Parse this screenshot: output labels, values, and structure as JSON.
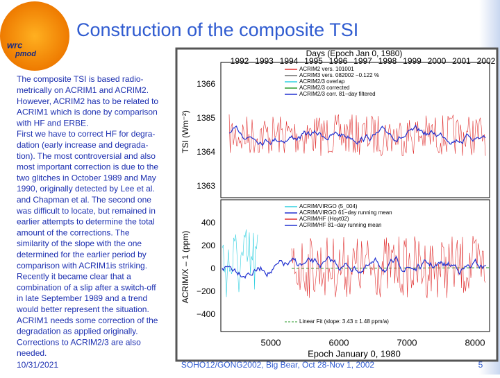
{
  "header": {
    "title": "Construction of the composite TSI",
    "logo": [
      "wrc",
      "pmod"
    ]
  },
  "body": {
    "lines": [
      "The composite TSI is based radio-",
      "metrically on ACRIM1 and ACRIM2.",
      "However, ACRIM2 has to be related to",
      "ACRIM1 which is done by comparison",
      "with HF and ERBE.",
      "First we have to correct HF for degra-",
      "dation (early increase and degrada-",
      "tion). The most controversial and also",
      "most important correction is due to the",
      "two glitches in October 1989 and May",
      "1990, originally detected by Lee et al.",
      "and  Chapman et al. The second one",
      "was difficult to locate, but remained in",
      "earlier attempts to determine the total",
      "amount of the corrections. The",
      "similarity of the slope with the one",
      "determined for the earlier period by",
      "comparison with ACRIM1is striking.",
      "Recently it became clear that a",
      "combination of a slip after a switch-off",
      "in late September 1989 and a trend",
      "would better represent the situation.",
      "ACRIM1 needs some correction of the",
      "degradation as applied originally.",
      "Corrections to ACRIM2/3 are also",
      "needed."
    ]
  },
  "figure": {
    "top_axis_title": "Days (Epoch Jan 0, 1980)",
    "top_ticks": [
      "1992",
      "1993",
      "1994",
      "1995",
      "1996",
      "1997",
      "1998",
      "1999",
      "2000",
      "2001",
      "2002"
    ],
    "bottom_axis_title": "Epoch January 0, 1980",
    "bottom_ticks": [
      "5000",
      "6000",
      "7000",
      "8000"
    ],
    "upper_ylabel": "TSI (Wm⁻²)",
    "upper_yticks": [
      "1366",
      "1385",
      "1364",
      "1363"
    ],
    "lower_ylabel": "ACRIM/X – 1 (ppm)",
    "lower_yticks": [
      "400",
      "200",
      "0",
      "−200",
      "−400"
    ],
    "upper_legend": [
      "ACRIM2 vers. 101001",
      "ACRIM3 vers. 082002 −0.122 %",
      "ACRIM2/3 overlap",
      "ACRIM2/3 corrected",
      "ACRIM2/3 corr. 81−day filtered"
    ],
    "lower_legend": [
      "ACRIM/VIRGO (5_004)",
      "ACRIM/VIRGO 61−day running mean",
      "ACRIM/HF (Hoyt02)",
      "ACRIM/HF 81−day running mean"
    ],
    "fit_label": "Linear Fit (slope: 3.43 ± 1.48 ppm/a)"
  },
  "footer": {
    "date": "10/31/2021",
    "event": "SOHO12/GONG2002, Big Bear, Oct 28-Nov 1, 2002",
    "page": "5"
  }
}
